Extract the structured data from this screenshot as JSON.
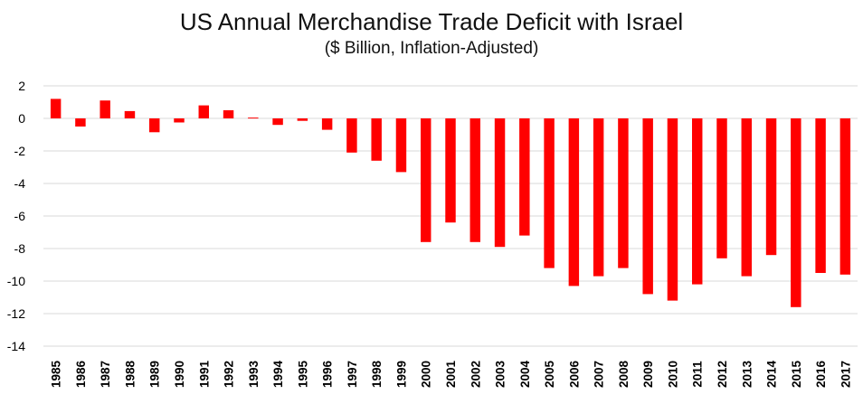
{
  "chart_data": {
    "type": "bar",
    "title": "US Annual Merchandise Trade Deficit with Israel",
    "subtitle": "($ Billion, Inflation-Adjusted)",
    "xlabel": "",
    "ylabel": "",
    "ylim": [
      -14,
      2
    ],
    "yticks": [
      2,
      0,
      -2,
      -4,
      -6,
      -8,
      -10,
      -12,
      -14
    ],
    "ytick_labels": [
      "2",
      "0",
      "-2",
      "-4",
      "-6",
      "-8",
      "-10",
      "-12",
      "-14"
    ],
    "grid": true,
    "legend": "none",
    "bar_color": "#ff0000",
    "grid_color": "#d9d9d9",
    "categories": [
      "1985",
      "1986",
      "1987",
      "1988",
      "1989",
      "1990",
      "1991",
      "1992",
      "1993",
      "1994",
      "1995",
      "1996",
      "1997",
      "1998",
      "1999",
      "2000",
      "2001",
      "2002",
      "2003",
      "2004",
      "2005",
      "2006",
      "2007",
      "2008",
      "2009",
      "2010",
      "2011",
      "2012",
      "2013",
      "2014",
      "2015",
      "2016",
      "2017"
    ],
    "values": [
      1.2,
      -0.5,
      1.1,
      0.45,
      -0.85,
      -0.25,
      0.8,
      0.5,
      0.05,
      -0.4,
      -0.15,
      -0.7,
      -2.1,
      -2.6,
      -3.3,
      -7.6,
      -6.4,
      -7.6,
      -7.9,
      -7.2,
      -9.2,
      -10.3,
      -9.7,
      -9.2,
      -10.8,
      -11.2,
      -10.2,
      -8.6,
      -9.7,
      -8.4,
      -11.6,
      -9.5,
      -9.6
    ]
  }
}
